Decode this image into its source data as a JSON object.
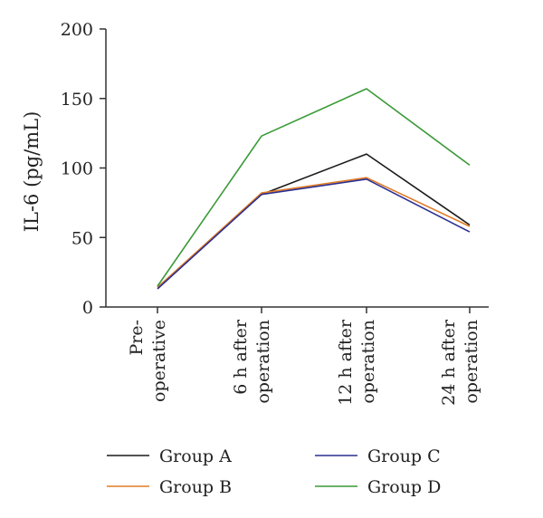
{
  "chart_data": {
    "type": "line",
    "title": "",
    "xlabel": "",
    "ylabel": "IL-6 (pg/mL)",
    "ylim": [
      0,
      200
    ],
    "yticks": [
      0,
      50,
      100,
      150,
      200
    ],
    "grid": false,
    "legend_position": "bottom",
    "categories": [
      [
        "Pre-",
        "operative"
      ],
      [
        "6 h after",
        "operation"
      ],
      [
        "12 h after",
        "operation"
      ],
      [
        "24 h after",
        "operation"
      ]
    ],
    "series": [
      {
        "name": "Group A",
        "color": "#1a1a1a",
        "values": [
          14,
          81,
          110,
          59
        ]
      },
      {
        "name": "Group B",
        "color": "#e07b27",
        "values": [
          14,
          82,
          93,
          58
        ]
      },
      {
        "name": "Group C",
        "color": "#2b2f8f",
        "values": [
          13,
          81,
          92,
          54
        ]
      },
      {
        "name": "Group D",
        "color": "#3a9a36",
        "values": [
          15,
          123,
          157,
          102
        ]
      }
    ]
  }
}
